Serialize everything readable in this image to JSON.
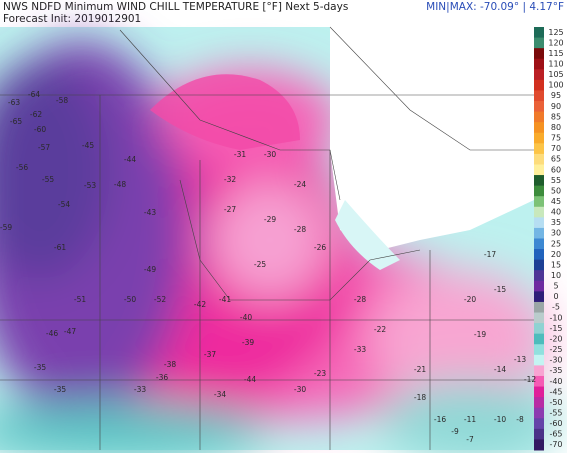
{
  "header": {
    "title": "NWS NDFD Minimum WIND CHILL TEMPERATURE [°F] Next 5-days",
    "init": "Forecast Init: 2019012901",
    "minmax": "MIN|MAX: -70.09° | 4.17°F"
  },
  "colorbar": {
    "labels": [
      125,
      120,
      115,
      110,
      105,
      100,
      95,
      90,
      85,
      80,
      75,
      70,
      65,
      60,
      55,
      50,
      45,
      40,
      35,
      30,
      25,
      20,
      15,
      10,
      5,
      0,
      -5,
      -10,
      -15,
      -20,
      -25,
      -30,
      -35,
      -40,
      -45,
      -50,
      -55,
      -60,
      -65,
      -70
    ],
    "colors": [
      "#1d6b57",
      "#3b8c6e",
      "#7a0a0a",
      "#9e1016",
      "#bb2025",
      "#d2301f",
      "#e04a2e",
      "#ea6138",
      "#f07a2a",
      "#f59222",
      "#f9ab2b",
      "#fcc447",
      "#fddc7c",
      "#fff09c",
      "#1f5d2c",
      "#3d8c3c",
      "#7cc276",
      "#c8e8bc",
      "#b6def2",
      "#74b6e4",
      "#3d88d2",
      "#2162bc",
      "#1d3e94",
      "#4e3496",
      "#6e2aa0",
      "#2e1e78",
      "#9aa6a6",
      "#b9cccc",
      "#8fd2d2",
      "#4ebcbc",
      "#92e0de",
      "#c4f4f2",
      "#f8a4d2",
      "#f55cb4",
      "#e0209a",
      "#b82ca4",
      "#8c3cb0",
      "#6444a8",
      "#4a3288",
      "#321a62"
    ]
  },
  "map": {
    "labels": [
      -63,
      -64,
      -58,
      -65,
      -62,
      -60,
      -57,
      -56,
      -55,
      -54,
      -59,
      -61,
      -53,
      -47,
      -46,
      -45,
      -44,
      -43,
      -42,
      -41,
      -40,
      -39,
      -38,
      -37,
      -36,
      -35,
      -34,
      -33,
      -32,
      -31,
      -30,
      -29,
      -28,
      -27,
      -26,
      -25,
      -24,
      -23,
      -22,
      -21,
      -20,
      -19,
      -18,
      -17,
      -16,
      -15,
      -14,
      -13,
      -12,
      -11,
      -10,
      -9,
      -8,
      -7,
      -49,
      -50,
      -48,
      -52,
      -51,
      -44,
      -35,
      -30,
      -33,
      -28
    ]
  }
}
